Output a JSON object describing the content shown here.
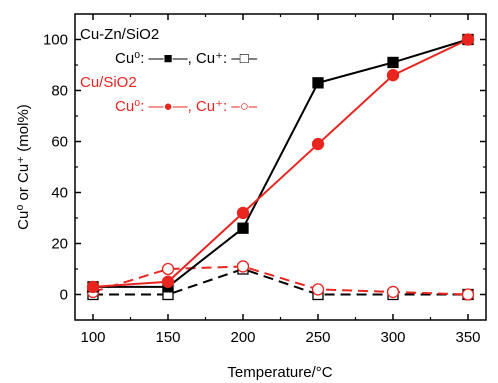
{
  "chart_data": {
    "type": "line",
    "xlabel": "Temperature/°C",
    "ylabel": "Cu⁰ or Cu⁺ (mol%)",
    "xlim": [
      88,
      362
    ],
    "ylim": [
      -10,
      110
    ],
    "xticks": [
      "100",
      "150",
      "200",
      "250",
      "300",
      "350"
    ],
    "yticks": [
      "0",
      "20",
      "40",
      "60",
      "80",
      "100"
    ],
    "x": [
      100,
      150,
      200,
      250,
      300,
      350
    ],
    "legend": {
      "groups": [
        {
          "label": "Cu-Zn/SiO2",
          "color": "#000000",
          "entry": "Cu⁰: —■—, Cu⁺: –□–"
        },
        {
          "label": "Cu/SiO2",
          "color": "#e8251f",
          "entry": "Cu⁰: —●—, Cu⁺: –○–"
        }
      ]
    },
    "series": [
      {
        "name": "Cu⁰",
        "group": "Cu-Zn/SiO2",
        "color": "#000000",
        "marker": "square",
        "filled": true,
        "dashed": false,
        "values": [
          3,
          3,
          26,
          83,
          91,
          100
        ]
      },
      {
        "name": "Cu⁺",
        "group": "Cu-Zn/SiO2",
        "color": "#000000",
        "marker": "square",
        "filled": false,
        "dashed": true,
        "values": [
          0,
          0,
          10,
          0,
          0,
          0
        ]
      },
      {
        "name": "Cu⁰",
        "group": "Cu/SiO2",
        "color": "#e8251f",
        "marker": "circle",
        "filled": true,
        "dashed": false,
        "values": [
          3,
          5,
          32,
          59,
          86,
          100
        ]
      },
      {
        "name": "Cu⁺",
        "group": "Cu/SiO2",
        "color": "#e8251f",
        "marker": "circle",
        "filled": false,
        "dashed": true,
        "values": [
          1,
          10,
          11,
          2,
          1,
          0
        ]
      }
    ]
  }
}
